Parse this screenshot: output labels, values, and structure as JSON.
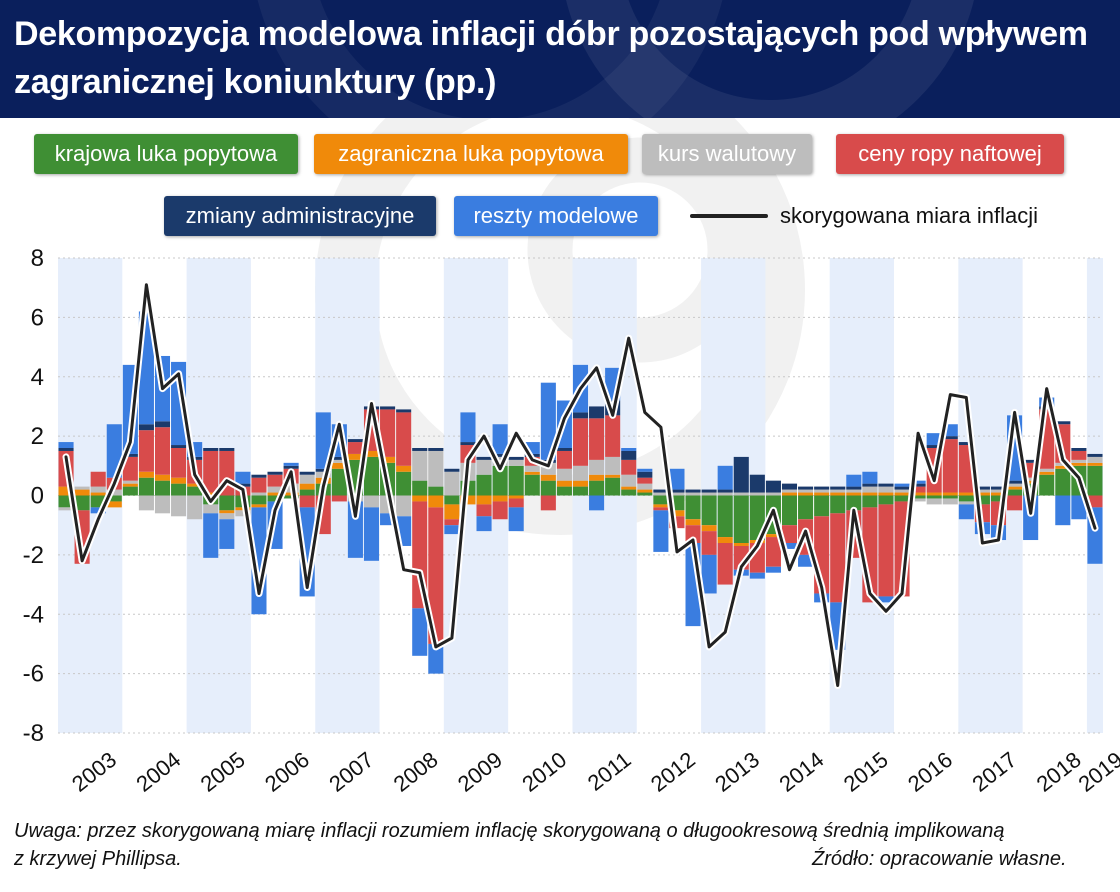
{
  "header": {
    "title": "Dekompozycja modelowa inflacji dóbr pozostających pod wpływem zagranicznej koniunktury (pp.)"
  },
  "notes": {
    "uwaga_line1": "Uwaga: przez skorygowaną miarę inflacji rozumiem inflację skorygowaną o długookresową średnią implikowaną",
    "uwaga_line2": "z krzywej Phillipsa.",
    "source": "Źródło: opracowanie własne."
  },
  "chart_data": {
    "type": "bar",
    "stacked": true,
    "title": "Dekompozycja modelowa inflacji dóbr pozostających pod wpływem zagranicznej koniunktury (pp.)",
    "ylim": [
      -8,
      8
    ],
    "yticks": [
      8,
      6,
      4,
      2,
      0,
      -2,
      -4,
      -6,
      -8
    ],
    "years": [
      "2003",
      "2004",
      "2005",
      "2006",
      "2007",
      "2008",
      "2009",
      "2010",
      "2011",
      "2012",
      "2013",
      "2014",
      "2015",
      "2016",
      "2017",
      "2018",
      "2019"
    ],
    "categories": [
      "2003Q1",
      "2003Q2",
      "2003Q3",
      "2003Q4",
      "2004Q1",
      "2004Q2",
      "2004Q3",
      "2004Q4",
      "2005Q1",
      "2005Q2",
      "2005Q3",
      "2005Q4",
      "2006Q1",
      "2006Q2",
      "2006Q3",
      "2006Q4",
      "2007Q1",
      "2007Q2",
      "2007Q3",
      "2007Q4",
      "2008Q1",
      "2008Q2",
      "2008Q3",
      "2008Q4",
      "2009Q1",
      "2009Q2",
      "2009Q3",
      "2009Q4",
      "2010Q1",
      "2010Q2",
      "2010Q3",
      "2010Q4",
      "2011Q1",
      "2011Q2",
      "2011Q3",
      "2011Q4",
      "2012Q1",
      "2012Q2",
      "2012Q3",
      "2012Q4",
      "2013Q1",
      "2013Q2",
      "2013Q3",
      "2013Q4",
      "2014Q1",
      "2014Q2",
      "2014Q3",
      "2014Q4",
      "2015Q1",
      "2015Q2",
      "2015Q3",
      "2015Q4",
      "2016Q1",
      "2016Q2",
      "2016Q3",
      "2016Q4",
      "2017Q1",
      "2017Q2",
      "2017Q3",
      "2017Q4",
      "2018Q1",
      "2018Q2",
      "2018Q3",
      "2018Q4",
      "2019Q1"
    ],
    "series": [
      {
        "name": "krajowa luka popytowa",
        "color": "#3f8f34",
        "values": [
          -0.4,
          -0.5,
          -0.4,
          -0.2,
          0.3,
          0.6,
          0.5,
          0.4,
          0.3,
          -0.3,
          -0.5,
          -0.4,
          -0.3,
          -0.2,
          -0.1,
          0.2,
          0.4,
          0.9,
          1.2,
          1.3,
          1.1,
          0.8,
          0.5,
          0.3,
          -0.3,
          0.5,
          0.7,
          1.0,
          1.0,
          0.7,
          0.5,
          0.3,
          0.3,
          0.5,
          0.6,
          0.2,
          0.1,
          -0.3,
          -0.5,
          -0.8,
          -1.0,
          -1.4,
          -1.6,
          -1.5,
          -1.3,
          -1.0,
          -0.8,
          -0.7,
          -0.6,
          -0.5,
          -0.4,
          -0.3,
          -0.2,
          -0.1,
          -0.1,
          -0.1,
          -0.2,
          -0.3,
          -0.2,
          0.2,
          0.4,
          0.7,
          0.9,
          1.0,
          1.0
        ]
      },
      {
        "name": "zagraniczna luka popytowa",
        "color": "#f08a0a",
        "values": [
          0.3,
          0.2,
          0.1,
          -0.2,
          0.1,
          0.2,
          0.2,
          0.2,
          0.1,
          0.1,
          -0.1,
          -0.1,
          -0.1,
          0.1,
          0.1,
          0.2,
          0.2,
          0.2,
          0.2,
          0.2,
          0.2,
          0.2,
          -0.2,
          -0.4,
          -0.5,
          -0.3,
          -0.3,
          -0.2,
          -0.1,
          0.1,
          0.2,
          0.2,
          0.2,
          0.2,
          0.1,
          0.1,
          0.1,
          -0.1,
          -0.2,
          -0.2,
          -0.2,
          -0.2,
          -0.1,
          -0.1,
          -0.1,
          0.1,
          0.1,
          0.1,
          0.1,
          0.1,
          0.1,
          0.1,
          0.1,
          0.1,
          0.1,
          0.1,
          0.1,
          0.1,
          0.1,
          0.1,
          0.1,
          0.1,
          0.1,
          0.1,
          0.1
        ]
      },
      {
        "name": "kurs walutowy",
        "color": "#bdbdbd",
        "values": [
          -0.1,
          0.1,
          0.2,
          0.2,
          0.1,
          -0.5,
          -0.6,
          -0.7,
          -0.8,
          -0.3,
          -0.2,
          -0.2,
          0.1,
          0.2,
          0.3,
          0.3,
          0.2,
          0.1,
          -0.2,
          -0.4,
          -0.6,
          -0.7,
          1.0,
          1.2,
          0.8,
          0.6,
          0.5,
          0.3,
          0.2,
          0.2,
          0.4,
          0.4,
          0.5,
          0.5,
          0.6,
          0.4,
          0.2,
          0.1,
          0.1,
          0.1,
          0.1,
          0.1,
          0.1,
          0.1,
          0.1,
          0.1,
          0.1,
          0.1,
          0.1,
          0.1,
          0.2,
          0.2,
          0.1,
          -0.1,
          -0.2,
          -0.2,
          -0.1,
          0.1,
          0.1,
          0.1,
          0.1,
          0.1,
          0.1,
          0.1,
          0.2
        ]
      },
      {
        "name": "ceny ropy naftowej",
        "color": "#d84b4b",
        "values": [
          1.2,
          -1.8,
          0.5,
          0.4,
          0.8,
          1.4,
          1.6,
          1.0,
          0.8,
          1.4,
          1.5,
          0.3,
          0.5,
          0.4,
          0.5,
          -0.4,
          -1.3,
          -0.2,
          0.4,
          1.4,
          1.6,
          1.8,
          -3.6,
          -4.6,
          -0.2,
          0.6,
          -0.4,
          -0.6,
          -0.3,
          0.3,
          -0.5,
          0.6,
          1.6,
          1.4,
          1.4,
          0.5,
          0.2,
          -0.1,
          -0.4,
          -0.6,
          -0.8,
          -1.4,
          -0.8,
          -1.0,
          -1.0,
          -0.6,
          -1.2,
          -2.6,
          -3.0,
          -1.6,
          -3.2,
          -3.1,
          -3.2,
          0.2,
          1.5,
          1.8,
          1.6,
          -0.6,
          -0.8,
          -0.5,
          0.5,
          2.0,
          1.3,
          0.3,
          -0.4
        ]
      },
      {
        "name": "zmiany administracyjne",
        "color": "#1b3a6b",
        "values": [
          0.1,
          0.0,
          0.0,
          0.0,
          0.1,
          0.2,
          0.2,
          0.1,
          0.1,
          0.1,
          0.1,
          0.1,
          0.1,
          0.1,
          0.1,
          0.1,
          0.1,
          0.1,
          0.1,
          0.1,
          0.1,
          0.1,
          0.1,
          0.1,
          0.1,
          0.1,
          0.1,
          0.1,
          0.1,
          0.1,
          0.1,
          0.1,
          0.2,
          0.4,
          0.5,
          0.3,
          0.2,
          0.1,
          0.1,
          0.1,
          0.1,
          0.1,
          1.2,
          0.6,
          0.4,
          0.2,
          0.1,
          0.1,
          0.1,
          0.1,
          0.1,
          0.1,
          0.1,
          0.1,
          0.1,
          0.1,
          0.1,
          0.1,
          0.1,
          0.1,
          0.1,
          0.1,
          0.1,
          0.1,
          0.1
        ]
      },
      {
        "name": "reszty modelowe",
        "color": "#3a7de0",
        "values": [
          0.2,
          0.0,
          -0.2,
          1.8,
          3.0,
          3.8,
          2.2,
          2.8,
          0.5,
          -1.5,
          -1.0,
          0.4,
          -3.6,
          -1.6,
          0.1,
          -3.0,
          1.9,
          1.1,
          -1.9,
          -1.8,
          -0.4,
          -1.0,
          -1.6,
          -1.0,
          -0.3,
          1.0,
          -0.5,
          1.0,
          -0.8,
          0.4,
          2.6,
          1.6,
          1.6,
          -0.5,
          1.1,
          0.1,
          0.1,
          -1.4,
          0.7,
          -2.8,
          -1.3,
          0.8,
          -0.2,
          -0.2,
          -0.2,
          -0.2,
          -0.4,
          -0.3,
          -1.6,
          0.4,
          0.4,
          -0.2,
          0.1,
          0.1,
          0.4,
          0.4,
          -0.5,
          -0.4,
          -0.5,
          2.2,
          -1.5,
          0.3,
          -1.0,
          -0.8,
          -1.9
        ]
      },
      {
        "name": "skorygowana miara inflacji",
        "type": "line",
        "color": "#222222",
        "values": [
          1.3,
          -2.2,
          -0.8,
          0.4,
          1.8,
          7.1,
          3.6,
          4.1,
          0.7,
          -0.2,
          0.5,
          0.2,
          -3.3,
          -0.5,
          0.8,
          -3.1,
          0.3,
          2.4,
          -0.7,
          3.1,
          0.3,
          -2.5,
          -2.6,
          -5.1,
          -4.8,
          1.2,
          2.0,
          0.9,
          2.1,
          1.2,
          1.0,
          2.6,
          3.6,
          4.3,
          2.7,
          5.3,
          2.8,
          2.3,
          -1.9,
          -1.5,
          -5.1,
          -4.6,
          -2.4,
          -1.7,
          -0.5,
          -2.5,
          -1.2,
          -3.1,
          -6.4,
          -0.5,
          -3.3,
          -3.9,
          -3.3,
          2.1,
          0.5,
          3.4,
          3.3,
          -1.6,
          -1.5,
          2.8,
          -0.6,
          3.6,
          1.2,
          0.6,
          -1.1
        ]
      }
    ]
  },
  "legend": {
    "krajowa": "krajowa luka popytowa",
    "zagraniczna": "zagraniczna luka popytowa",
    "kurs": "kurs walutowy",
    "ropa": "ceny ropy naftowej",
    "admin": "zmiany administracyjne",
    "reszty": "reszty modelowe",
    "line": "skorygowana miara inflacji"
  }
}
